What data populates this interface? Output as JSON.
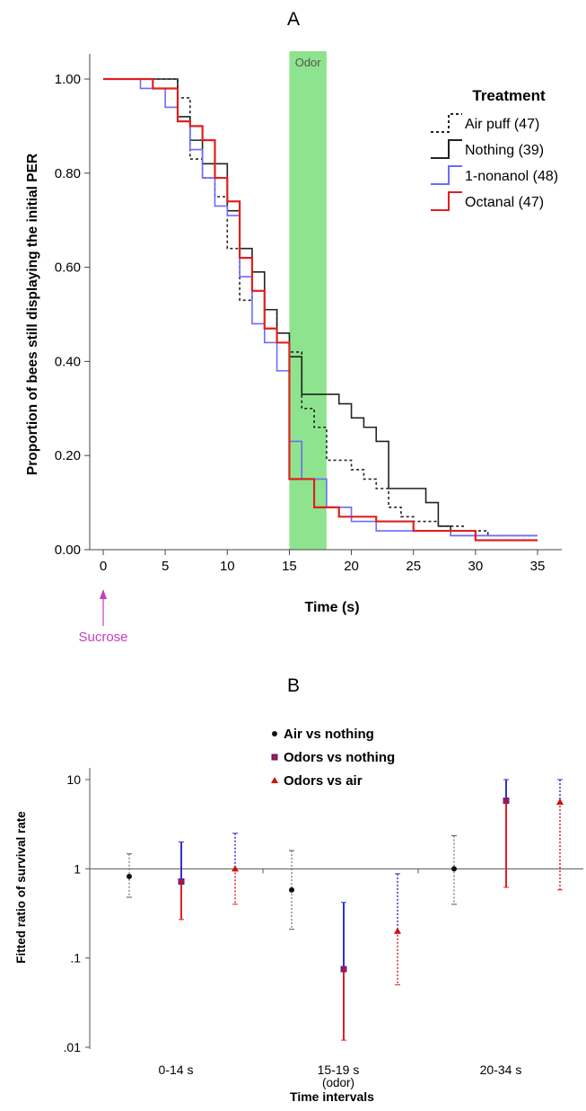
{
  "chart_data": [
    {
      "panel": "A",
      "type": "line",
      "step": true,
      "xlabel": "Time (s)",
      "ylabel": "Proportion of bees still displaying the initial PER",
      "xlim": [
        0,
        36
      ],
      "ylim": [
        0,
        1.05
      ],
      "xticks": [
        0,
        5,
        10,
        15,
        20,
        25,
        30,
        35
      ],
      "yticks": [
        0.0,
        0.2,
        0.4,
        0.6,
        0.8,
        1.0
      ],
      "ytick_labels": [
        "0.00",
        "0.20",
        "0.40",
        "0.60",
        "0.80",
        "1.00"
      ],
      "legend_title": "Treatment",
      "legend_position": "top-right",
      "shaded_region": {
        "x0": 15,
        "x1": 18,
        "label": "Odor",
        "color": "#8ee48e"
      },
      "stimulus": {
        "x": 0,
        "label": "Sucrose",
        "color": "#c040c0"
      },
      "series": [
        {
          "name": "Air puff (47)",
          "color": "#222222",
          "dashed": true,
          "points": [
            [
              0,
              1.0
            ],
            [
              4,
              1.0
            ],
            [
              6,
              0.96
            ],
            [
              7,
              0.83
            ],
            [
              8,
              0.79
            ],
            [
              9,
              0.75
            ],
            [
              10,
              0.64
            ],
            [
              11,
              0.53
            ],
            [
              12,
              0.55
            ],
            [
              13,
              0.51
            ],
            [
              14,
              0.44
            ],
            [
              15,
              0.42
            ],
            [
              16,
              0.3
            ],
            [
              17,
              0.26
            ],
            [
              18,
              0.19
            ],
            [
              20,
              0.17
            ],
            [
              21,
              0.15
            ],
            [
              22,
              0.13
            ],
            [
              23,
              0.09
            ],
            [
              24,
              0.07
            ],
            [
              25,
              0.06
            ],
            [
              27,
              0.05
            ],
            [
              29,
              0.04
            ],
            [
              31,
              0.03
            ],
            [
              35,
              0.03
            ]
          ]
        },
        {
          "name": "Nothing (39)",
          "color": "#222222",
          "dashed": false,
          "points": [
            [
              0,
              1.0
            ],
            [
              6,
              0.92
            ],
            [
              7,
              0.87
            ],
            [
              8,
              0.82
            ],
            [
              10,
              0.72
            ],
            [
              11,
              0.64
            ],
            [
              12,
              0.59
            ],
            [
              13,
              0.51
            ],
            [
              14,
              0.46
            ],
            [
              15,
              0.41
            ],
            [
              16,
              0.33
            ],
            [
              19,
              0.31
            ],
            [
              20,
              0.28
            ],
            [
              21,
              0.26
            ],
            [
              22,
              0.23
            ],
            [
              23,
              0.13
            ],
            [
              25,
              0.13
            ],
            [
              26,
              0.1
            ],
            [
              27,
              0.05
            ],
            [
              28,
              0.03
            ],
            [
              30,
              0.03
            ],
            [
              35,
              0.03
            ]
          ]
        },
        {
          "name": "1-nonanol (48)",
          "color": "#6b6bff",
          "dashed": false,
          "points": [
            [
              0,
              1.0
            ],
            [
              3,
              0.98
            ],
            [
              5,
              0.94
            ],
            [
              6,
              0.91
            ],
            [
              7,
              0.85
            ],
            [
              8,
              0.79
            ],
            [
              9,
              0.73
            ],
            [
              10,
              0.71
            ],
            [
              11,
              0.58
            ],
            [
              12,
              0.48
            ],
            [
              13,
              0.44
            ],
            [
              14,
              0.38
            ],
            [
              15,
              0.23
            ],
            [
              16,
              0.15
            ],
            [
              18,
              0.09
            ],
            [
              20,
              0.06
            ],
            [
              22,
              0.04
            ],
            [
              25,
              0.04
            ],
            [
              27,
              0.04
            ],
            [
              28,
              0.03
            ],
            [
              35,
              0.03
            ]
          ]
        },
        {
          "name": "Octanal (47)",
          "color": "#e02020",
          "dashed": false,
          "points": [
            [
              0,
              1.0
            ],
            [
              4,
              0.98
            ],
            [
              6,
              0.91
            ],
            [
              7,
              0.9
            ],
            [
              8,
              0.87
            ],
            [
              9,
              0.79
            ],
            [
              10,
              0.74
            ],
            [
              11,
              0.62
            ],
            [
              12,
              0.55
            ],
            [
              13,
              0.47
            ],
            [
              14,
              0.44
            ],
            [
              15,
              0.15
            ],
            [
              17,
              0.09
            ],
            [
              19,
              0.07
            ],
            [
              22,
              0.06
            ],
            [
              25,
              0.04
            ],
            [
              30,
              0.02
            ],
            [
              35,
              0.02
            ]
          ]
        }
      ]
    },
    {
      "panel": "B",
      "type": "scatter",
      "error_bars": true,
      "xlabel": "Time intervals",
      "ylabel": "Fitted ratio of survival rate",
      "yscale": "log",
      "ylim": [
        0.01,
        10
      ],
      "yticks": [
        0.01,
        0.1,
        1,
        10
      ],
      "ytick_labels": [
        ".01",
        ".1",
        "1",
        "10"
      ],
      "categories": [
        "0-14 s",
        "15-19 s",
        "20-34 s"
      ],
      "category_sublabels": [
        "",
        "(odor)",
        ""
      ],
      "reference_line": 1,
      "legend_position": "top-center",
      "legend": [
        {
          "label": "Air vs nothing",
          "marker": "circle",
          "color": "#111111"
        },
        {
          "label": "Odors vs nothing",
          "marker": "square",
          "color": "#cc1010",
          "accent": "#2020c0"
        },
        {
          "label": "Odors vs air",
          "marker": "triangle",
          "color": "#cc1010"
        }
      ],
      "points": [
        {
          "category": "0-14 s",
          "comparison": "Air vs nothing",
          "value": 0.82,
          "low": 0.48,
          "high": 1.47
        },
        {
          "category": "0-14 s",
          "comparison": "Odors vs nothing",
          "value": 0.72,
          "low": 0.27,
          "high": 2.0
        },
        {
          "category": "0-14 s",
          "comparison": "Odors vs air",
          "value": 1.0,
          "low": 0.4,
          "high": 2.5
        },
        {
          "category": "15-19 s",
          "comparison": "Air vs nothing",
          "value": 0.58,
          "low": 0.21,
          "high": 1.6
        },
        {
          "category": "15-19 s",
          "comparison": "Odors vs nothing",
          "value": 0.075,
          "low": 0.012,
          "high": 0.42
        },
        {
          "category": "15-19 s",
          "comparison": "Odors vs air",
          "value": 0.2,
          "low": 0.05,
          "high": 0.88
        },
        {
          "category": "20-34 s",
          "comparison": "Air vs nothing",
          "value": 1.0,
          "low": 0.4,
          "high": 2.35
        },
        {
          "category": "20-34 s",
          "comparison": "Odors vs nothing",
          "value": 5.8,
          "low": 0.62,
          "high": 10
        },
        {
          "category": "20-34 s",
          "comparison": "Odors vs air",
          "value": 5.6,
          "low": 0.58,
          "high": 10
        }
      ]
    }
  ]
}
